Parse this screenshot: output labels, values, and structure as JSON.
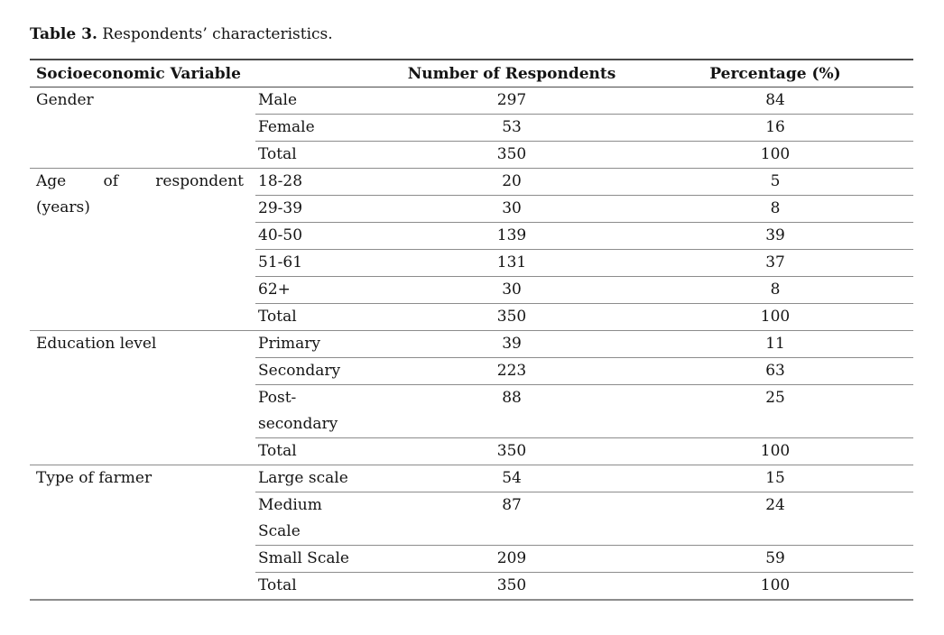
{
  "title": {
    "prefix": "Table 3.",
    "text": " Respondents’ characteristics."
  },
  "table": {
    "columns": [
      "Socioeconomic Variable",
      "Number of Respondents",
      "Percentage (%)"
    ],
    "groups": [
      {
        "variable": "Gender",
        "rows": [
          {
            "category": "Male",
            "respondents": "297",
            "percentage": "84"
          },
          {
            "category": "Female",
            "respondents": "53",
            "percentage": "16"
          },
          {
            "category": "Total",
            "respondents": "350",
            "percentage": "100"
          }
        ]
      },
      {
        "variable": "Age of respondent\n(years)",
        "justify": true,
        "rows": [
          {
            "category": "18-28",
            "respondents": "20",
            "percentage": "5"
          },
          {
            "category": "29-39",
            "respondents": "30",
            "percentage": "8"
          },
          {
            "category": "40-50",
            "respondents": "139",
            "percentage": "39"
          },
          {
            "category": "51-61",
            "respondents": "131",
            "percentage": "37"
          },
          {
            "category": "62+",
            "respondents": "30",
            "percentage": "8"
          },
          {
            "category": "Total",
            "respondents": "350",
            "percentage": "100"
          }
        ]
      },
      {
        "variable": "Education level",
        "rows": [
          {
            "category": "Primary",
            "respondents": "39",
            "percentage": "11"
          },
          {
            "category": "Secondary",
            "respondents": "223",
            "percentage": "63"
          },
          {
            "category": "Post-\nsecondary",
            "respondents": "88",
            "percentage": "25"
          },
          {
            "category": "Total",
            "respondents": "350",
            "percentage": "100"
          }
        ]
      },
      {
        "variable": "Type of farmer",
        "rows": [
          {
            "category": "Large scale",
            "respondents": "54",
            "percentage": "15"
          },
          {
            "category": "Medium\nScale",
            "respondents": "87",
            "percentage": "24"
          },
          {
            "category": "Small Scale",
            "respondents": "209",
            "percentage": "59"
          },
          {
            "category": "Total",
            "respondents": "350",
            "percentage": "100"
          }
        ]
      }
    ]
  }
}
